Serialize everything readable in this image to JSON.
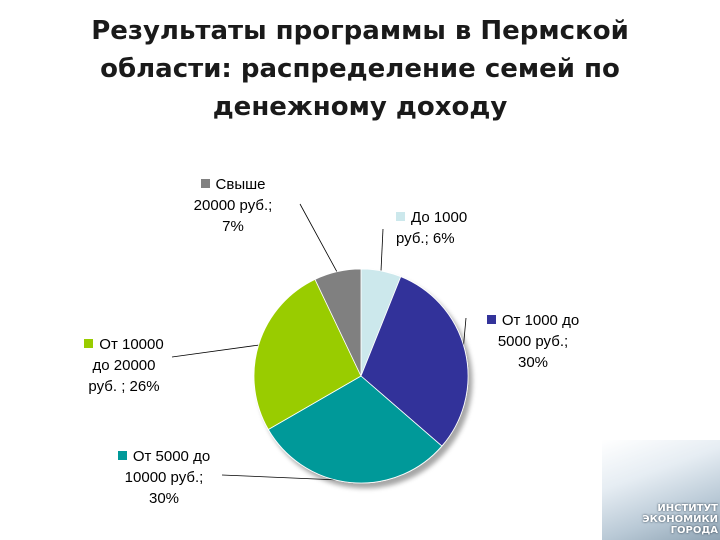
{
  "slide": {
    "title_lines": [
      "Результаты программы в Пермской",
      "области: распределение семей по",
      "денежному доходу"
    ]
  },
  "chart_data": {
    "type": "pie",
    "title": "",
    "legend": "none",
    "slices": [
      {
        "label_lines": [
          "До 1000",
          "руб.; 6%"
        ],
        "category": "До 1000 руб.",
        "value": 6,
        "color": "#cce8ec"
      },
      {
        "label_lines": [
          "От 1000 до",
          "5000 руб.;",
          "30%"
        ],
        "category": "От 1000 до 5000 руб.",
        "value": 30,
        "color": "#33339a"
      },
      {
        "label_lines": [
          "От 5000 до",
          "10000 руб.;",
          "30%"
        ],
        "category": "От 5000 до 10000 руб.",
        "value": 30,
        "color": "#009999"
      },
      {
        "label_lines": [
          "От 10000",
          "до 20000",
          "руб. ; 26%"
        ],
        "category": "От 10000 до 20000 руб.",
        "value": 26,
        "color": "#99cc00"
      },
      {
        "label_lines": [
          "Свыше",
          "20000 руб.;",
          "7%"
        ],
        "category": "Свыше 20000 руб.",
        "value": 7,
        "color": "#808080"
      }
    ]
  },
  "logo": {
    "text_lines": [
      "ИНСТИТУТ",
      "ЭКОНОМИКИ",
      "ГОРОДА"
    ]
  }
}
